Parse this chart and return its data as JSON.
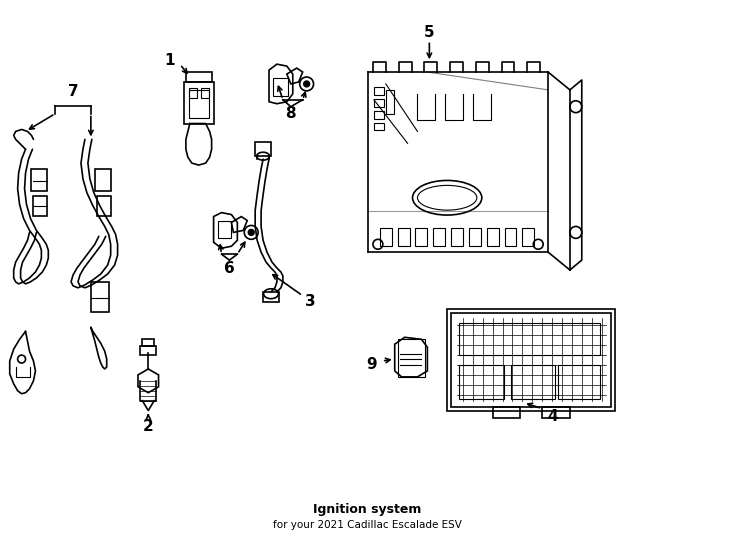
{
  "title": "Ignition system",
  "subtitle": "for your 2021 Cadillac Escalade ESV",
  "background_color": "#ffffff",
  "line_color": "#000000",
  "line_width": 1.2,
  "figsize": [
    7.34,
    5.4
  ],
  "dpi": 100,
  "xlim": [
    0,
    7.34
  ],
  "ylim": [
    0,
    5.4
  ]
}
